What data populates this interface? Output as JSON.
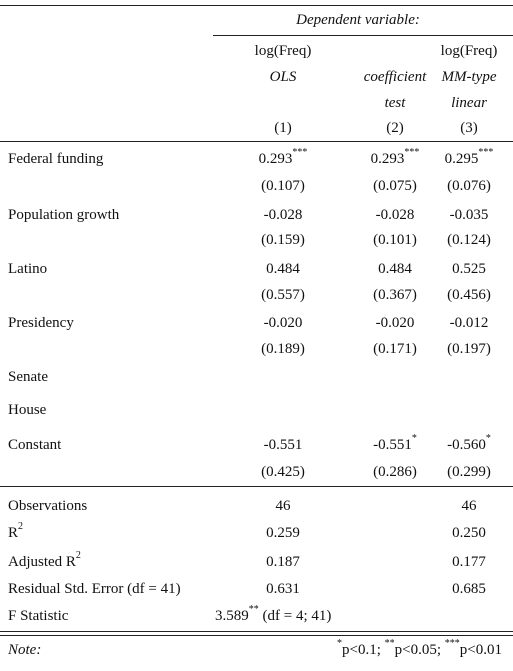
{
  "header": {
    "dependent_variable": "Dependent variable:",
    "col1_var": "log(Freq)",
    "col1_method": "OLS",
    "col2_method_line1": "coefficient",
    "col2_method_line2": "test",
    "col3_var": "log(Freq)",
    "col3_method_line1": "MM-type",
    "col3_method_line2": "linear",
    "col_numbers": [
      "(1)",
      "(2)",
      "(3)"
    ]
  },
  "rows": [
    {
      "label": "Federal funding",
      "coef": [
        "0.293",
        "0.293",
        "0.295"
      ],
      "stars": [
        "***",
        "***",
        "***"
      ],
      "se": [
        "(0.107)",
        "(0.075)",
        "(0.076)"
      ]
    },
    {
      "label": "Population growth",
      "coef": [
        "-0.028",
        "-0.028",
        "-0.035"
      ],
      "stars": [
        "",
        "",
        ""
      ],
      "se": [
        "(0.159)",
        "(0.101)",
        "(0.124)"
      ]
    },
    {
      "label": "Latino",
      "coef": [
        "0.484",
        "0.484",
        "0.525"
      ],
      "stars": [
        "",
        "",
        ""
      ],
      "se": [
        "(0.557)",
        "(0.367)",
        "(0.456)"
      ]
    },
    {
      "label": "Presidency",
      "coef": [
        "-0.020",
        "-0.020",
        "-0.012"
      ],
      "stars": [
        "",
        "",
        ""
      ],
      "se": [
        "(0.189)",
        "(0.171)",
        "(0.197)"
      ]
    },
    {
      "label": "Senate"
    },
    {
      "label": "House"
    },
    {
      "label": "Constant",
      "coef": [
        "-0.551",
        "-0.551",
        "-0.560"
      ],
      "stars": [
        "",
        "*",
        "*"
      ],
      "se": [
        "(0.425)",
        "(0.286)",
        "(0.299)"
      ]
    }
  ],
  "stats": {
    "observations": {
      "label": "Observations",
      "col1": "46",
      "col3": "46"
    },
    "r2": {
      "label": "R",
      "sup": "2",
      "col1": "0.259",
      "col3": "0.250"
    },
    "adj_r2": {
      "label": "Adjusted R",
      "sup": "2",
      "col1": "0.187",
      "col3": "0.177"
    },
    "rse": {
      "label": "Residual Std. Error (df = 41)",
      "col1": "0.631",
      "col3": "0.685"
    },
    "fstat": {
      "label": "F Statistic",
      "value": "3.589",
      "stars": "**",
      "df": "(df = 4; 41)"
    }
  },
  "note": {
    "label": "Note:",
    "s1": "*",
    "t1": "p<0.1; ",
    "s2": "**",
    "t2": "p<0.05; ",
    "s3": "***",
    "t3": "p<0.01"
  }
}
